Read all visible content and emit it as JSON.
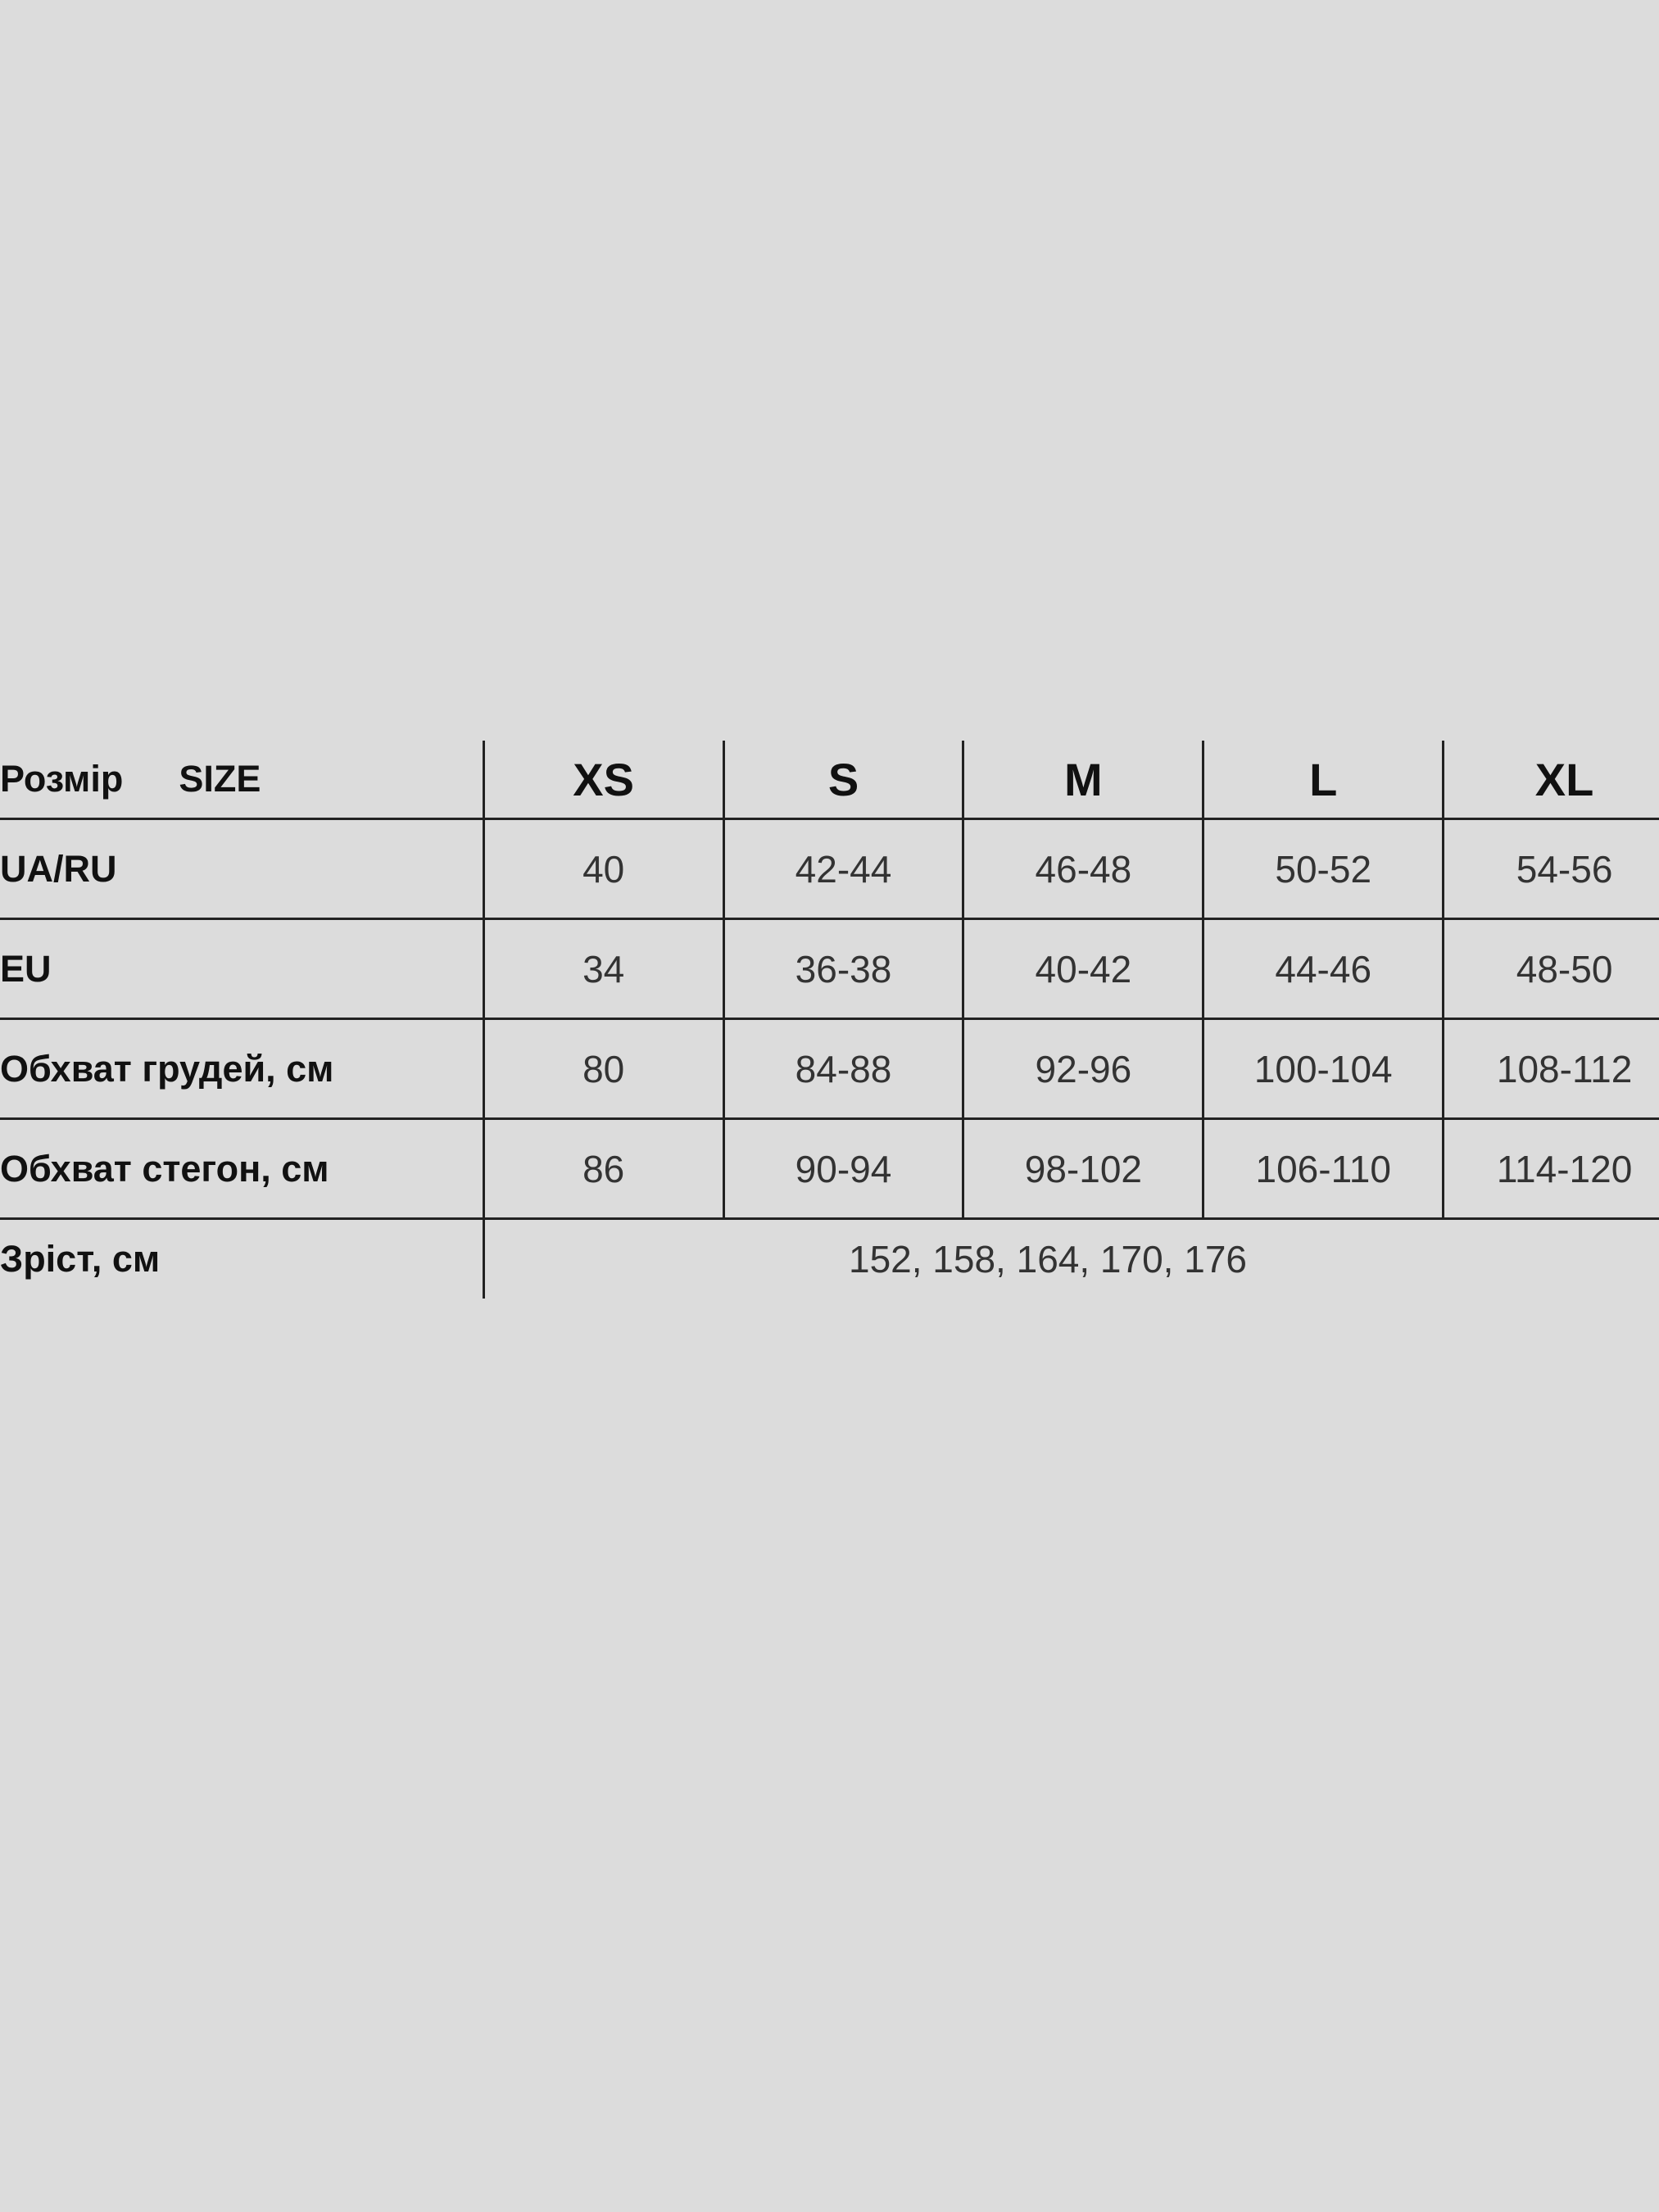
{
  "table": {
    "header": {
      "label_ua": "Розмір",
      "label_en": "SIZE",
      "sizes": [
        "XS",
        "S",
        "M",
        "L",
        "XL"
      ]
    },
    "rows": [
      {
        "label": "UA/RU",
        "values": [
          "40",
          "42-44",
          "46-48",
          "50-52",
          "54-56"
        ]
      },
      {
        "label": "EU",
        "values": [
          "34",
          "36-38",
          "40-42",
          "44-46",
          "48-50"
        ]
      },
      {
        "label": "Обхват грудей, см",
        "values": [
          "80",
          "84-88",
          "92-96",
          "100-104",
          "108-112"
        ]
      },
      {
        "label": "Обхват стегон, см",
        "values": [
          "86",
          "90-94",
          "98-102",
          "106-110",
          "114-120"
        ]
      }
    ],
    "height_row": {
      "label": "Зріст, см",
      "value": "152, 158, 164, 170, 176"
    }
  },
  "colors": {
    "background": "#dcdcdc",
    "lines": "#222222",
    "text": "#333333"
  }
}
